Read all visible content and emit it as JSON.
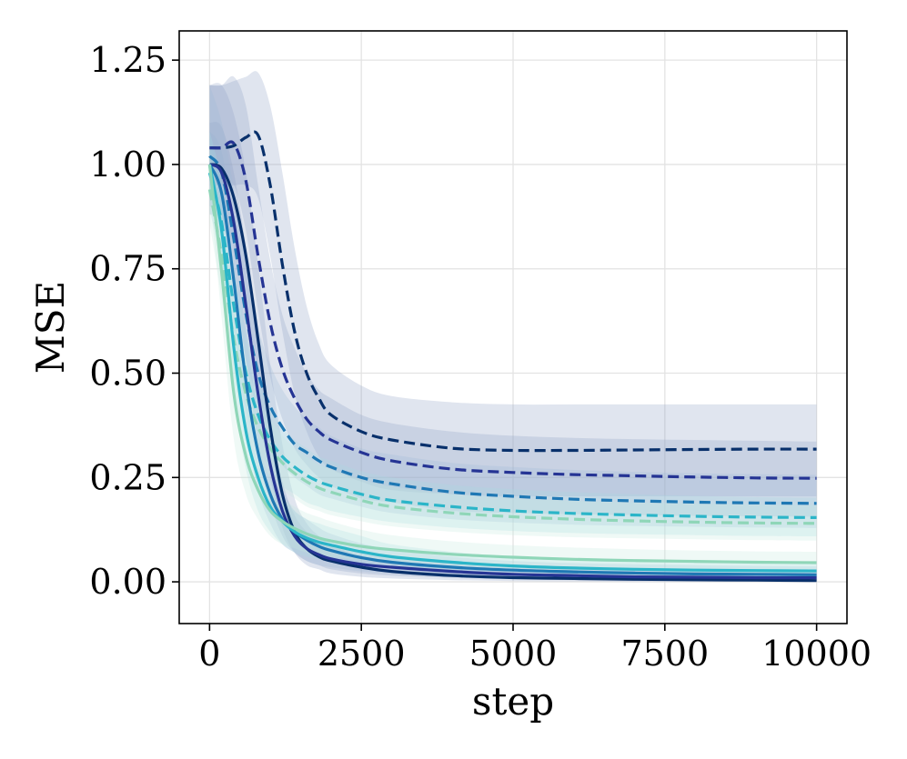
{
  "chart_data": {
    "type": "line",
    "title": "",
    "xlabel": "step",
    "ylabel": "MSE",
    "xlim": [
      -500,
      10500
    ],
    "ylim": [
      -0.1,
      1.32
    ],
    "xticks": [
      0,
      2500,
      5000,
      7500,
      10000
    ],
    "xtick_labels": [
      "0",
      "2500",
      "5000",
      "7500",
      "10000"
    ],
    "yticks": [
      0.0,
      0.25,
      0.5,
      0.75,
      1.0,
      1.25
    ],
    "ytick_labels": [
      "0.00",
      "0.25",
      "0.50",
      "0.75",
      "1.00",
      "1.25"
    ],
    "grid": true,
    "legend": "none",
    "x": [
      0,
      200,
      400,
      600,
      800,
      1000,
      1200,
      1400,
      1600,
      1800,
      2000,
      2500,
      3000,
      4000,
      5000,
      6000,
      7000,
      8000,
      9000,
      10000
    ],
    "series": [
      {
        "style": "solid",
        "color": "#08306b",
        "band_color": "#8fa0c4",
        "values": [
          1.0,
          0.99,
          0.92,
          0.78,
          0.58,
          0.37,
          0.21,
          0.12,
          0.08,
          0.06,
          0.05,
          0.035,
          0.025,
          0.015,
          0.01,
          0.008,
          0.006,
          0.005,
          0.004,
          0.003
        ],
        "lower": [
          0.88,
          0.87,
          0.8,
          0.64,
          0.44,
          0.25,
          0.13,
          0.07,
          0.04,
          0.03,
          0.02,
          0.012,
          0.008,
          0.004,
          0.002,
          0.001,
          0.0,
          0.0,
          0.0,
          0.0
        ],
        "upper": [
          1.19,
          1.19,
          1.12,
          0.98,
          0.76,
          0.52,
          0.33,
          0.2,
          0.14,
          0.11,
          0.09,
          0.06,
          0.05,
          0.035,
          0.025,
          0.02,
          0.017,
          0.015,
          0.013,
          0.012
        ]
      },
      {
        "style": "solid",
        "color": "#253494",
        "band_color": "#8fa0c4",
        "values": [
          1.0,
          0.98,
          0.86,
          0.66,
          0.45,
          0.28,
          0.17,
          0.11,
          0.08,
          0.065,
          0.055,
          0.042,
          0.035,
          0.025,
          0.018,
          0.015,
          0.012,
          0.011,
          0.01,
          0.01
        ],
        "lower": [
          0.9,
          0.87,
          0.74,
          0.53,
          0.33,
          0.19,
          0.11,
          0.07,
          0.05,
          0.04,
          0.03,
          0.02,
          0.015,
          0.01,
          0.006,
          0.004,
          0.003,
          0.002,
          0.002,
          0.002
        ],
        "upper": [
          1.1,
          1.09,
          0.98,
          0.8,
          0.58,
          0.38,
          0.24,
          0.16,
          0.12,
          0.1,
          0.085,
          0.068,
          0.058,
          0.045,
          0.038,
          0.033,
          0.03,
          0.028,
          0.026,
          0.025
        ]
      },
      {
        "style": "solid",
        "color": "#1f78b4",
        "band_color": "#9dbcd9",
        "values": [
          1.0,
          0.93,
          0.72,
          0.48,
          0.31,
          0.21,
          0.15,
          0.12,
          0.1,
          0.085,
          0.075,
          0.058,
          0.047,
          0.035,
          0.028,
          0.024,
          0.021,
          0.019,
          0.018,
          0.017
        ],
        "lower": [
          0.92,
          0.83,
          0.6,
          0.37,
          0.22,
          0.14,
          0.09,
          0.07,
          0.05,
          0.04,
          0.035,
          0.025,
          0.02,
          0.012,
          0.008,
          0.006,
          0.005,
          0.004,
          0.004,
          0.004
        ],
        "upper": [
          1.08,
          1.03,
          0.84,
          0.6,
          0.41,
          0.29,
          0.22,
          0.17,
          0.15,
          0.13,
          0.115,
          0.092,
          0.078,
          0.06,
          0.05,
          0.045,
          0.042,
          0.04,
          0.038,
          0.037
        ]
      },
      {
        "style": "solid",
        "color": "#2bb5c8",
        "band_color": "#a8dce3",
        "values": [
          1.0,
          0.84,
          0.56,
          0.36,
          0.25,
          0.18,
          0.145,
          0.12,
          0.105,
          0.095,
          0.088,
          0.072,
          0.06,
          0.047,
          0.038,
          0.033,
          0.03,
          0.028,
          0.027,
          0.026
        ],
        "lower": [
          0.93,
          0.74,
          0.45,
          0.27,
          0.17,
          0.12,
          0.09,
          0.07,
          0.06,
          0.055,
          0.05,
          0.04,
          0.033,
          0.024,
          0.019,
          0.016,
          0.014,
          0.013,
          0.012,
          0.012
        ],
        "upper": [
          1.07,
          0.94,
          0.67,
          0.46,
          0.33,
          0.25,
          0.2,
          0.17,
          0.15,
          0.14,
          0.13,
          0.11,
          0.09,
          0.072,
          0.06,
          0.054,
          0.05,
          0.047,
          0.045,
          0.044
        ]
      },
      {
        "style": "solid",
        "color": "#8fd6b8",
        "band_color": "#c7ebdd",
        "values": [
          1.0,
          0.74,
          0.45,
          0.3,
          0.22,
          0.17,
          0.145,
          0.128,
          0.115,
          0.105,
          0.098,
          0.085,
          0.077,
          0.066,
          0.059,
          0.054,
          0.051,
          0.049,
          0.047,
          0.046
        ],
        "lower": [
          0.94,
          0.63,
          0.34,
          0.21,
          0.15,
          0.11,
          0.09,
          0.08,
          0.07,
          0.065,
          0.06,
          0.052,
          0.046,
          0.038,
          0.033,
          0.03,
          0.028,
          0.027,
          0.026,
          0.025
        ],
        "upper": [
          1.06,
          0.85,
          0.56,
          0.39,
          0.29,
          0.23,
          0.2,
          0.18,
          0.165,
          0.155,
          0.145,
          0.125,
          0.112,
          0.097,
          0.088,
          0.082,
          0.078,
          0.075,
          0.073,
          0.072
        ]
      },
      {
        "style": "dashed",
        "color": "#08306b",
        "band_color": "#8fa0c4",
        "values": [
          1.04,
          1.04,
          1.045,
          1.065,
          1.07,
          0.95,
          0.76,
          0.6,
          0.5,
          0.44,
          0.4,
          0.36,
          0.34,
          0.32,
          0.315,
          0.315,
          0.316,
          0.317,
          0.318,
          0.318
        ],
        "lower": [
          0.95,
          0.95,
          0.95,
          0.95,
          0.92,
          0.78,
          0.6,
          0.45,
          0.36,
          0.3,
          0.27,
          0.24,
          0.22,
          0.21,
          0.205,
          0.205,
          0.205,
          0.205,
          0.205,
          0.205
        ],
        "upper": [
          1.19,
          1.19,
          1.2,
          1.21,
          1.22,
          1.14,
          0.98,
          0.8,
          0.66,
          0.57,
          0.52,
          0.47,
          0.445,
          0.43,
          0.425,
          0.425,
          0.425,
          0.425,
          0.425,
          0.425
        ]
      },
      {
        "style": "dashed",
        "color": "#253494",
        "band_color": "#8fa0c4",
        "values": [
          1.04,
          1.04,
          1.05,
          0.96,
          0.78,
          0.62,
          0.51,
          0.44,
          0.39,
          0.36,
          0.34,
          0.31,
          0.29,
          0.27,
          0.262,
          0.257,
          0.254,
          0.251,
          0.249,
          0.248
        ],
        "lower": [
          0.96,
          0.95,
          0.95,
          0.84,
          0.65,
          0.49,
          0.39,
          0.32,
          0.28,
          0.25,
          0.23,
          0.2,
          0.19,
          0.17,
          0.165,
          0.162,
          0.16,
          0.158,
          0.157,
          0.156
        ],
        "upper": [
          1.19,
          1.19,
          1.21,
          1.14,
          0.95,
          0.77,
          0.64,
          0.56,
          0.5,
          0.46,
          0.44,
          0.4,
          0.38,
          0.36,
          0.35,
          0.345,
          0.342,
          0.34,
          0.338,
          0.336
        ]
      },
      {
        "style": "dashed",
        "color": "#1f78b4",
        "band_color": "#9dbcd9",
        "values": [
          1.02,
          0.98,
          0.82,
          0.64,
          0.5,
          0.42,
          0.37,
          0.33,
          0.31,
          0.29,
          0.275,
          0.25,
          0.235,
          0.215,
          0.205,
          0.198,
          0.194,
          0.191,
          0.189,
          0.188
        ],
        "lower": [
          0.93,
          0.88,
          0.71,
          0.53,
          0.4,
          0.33,
          0.28,
          0.25,
          0.23,
          0.21,
          0.2,
          0.18,
          0.165,
          0.15,
          0.142,
          0.137,
          0.134,
          0.132,
          0.13,
          0.129
        ],
        "upper": [
          1.19,
          1.1,
          0.94,
          0.76,
          0.61,
          0.52,
          0.46,
          0.42,
          0.39,
          0.37,
          0.35,
          0.32,
          0.305,
          0.285,
          0.275,
          0.268,
          0.263,
          0.26,
          0.258,
          0.256
        ]
      },
      {
        "style": "dashed",
        "color": "#2bb5c8",
        "band_color": "#a8dce3",
        "values": [
          0.98,
          0.86,
          0.66,
          0.5,
          0.4,
          0.34,
          0.3,
          0.275,
          0.255,
          0.24,
          0.23,
          0.21,
          0.195,
          0.18,
          0.17,
          0.164,
          0.16,
          0.157,
          0.155,
          0.154
        ],
        "lower": [
          0.89,
          0.76,
          0.56,
          0.41,
          0.32,
          0.27,
          0.23,
          0.21,
          0.19,
          0.18,
          0.17,
          0.155,
          0.143,
          0.13,
          0.122,
          0.117,
          0.114,
          0.112,
          0.11,
          0.109
        ],
        "upper": [
          1.08,
          0.96,
          0.76,
          0.6,
          0.49,
          0.42,
          0.37,
          0.34,
          0.32,
          0.3,
          0.29,
          0.265,
          0.25,
          0.232,
          0.222,
          0.215,
          0.21,
          0.206,
          0.203,
          0.201
        ]
      },
      {
        "style": "dashed",
        "color": "#8fd6b8",
        "band_color": "#c7ebdd",
        "values": [
          0.94,
          0.78,
          0.58,
          0.45,
          0.37,
          0.32,
          0.285,
          0.26,
          0.24,
          0.225,
          0.215,
          0.195,
          0.18,
          0.165,
          0.156,
          0.15,
          0.146,
          0.143,
          0.141,
          0.14
        ],
        "lower": [
          0.86,
          0.68,
          0.49,
          0.37,
          0.3,
          0.25,
          0.22,
          0.2,
          0.18,
          0.17,
          0.16,
          0.145,
          0.133,
          0.12,
          0.112,
          0.107,
          0.104,
          0.102,
          0.1,
          0.099
        ],
        "upper": [
          1.02,
          0.88,
          0.67,
          0.53,
          0.44,
          0.39,
          0.35,
          0.32,
          0.3,
          0.28,
          0.27,
          0.245,
          0.228,
          0.21,
          0.2,
          0.194,
          0.19,
          0.187,
          0.185,
          0.183
        ]
      }
    ]
  }
}
